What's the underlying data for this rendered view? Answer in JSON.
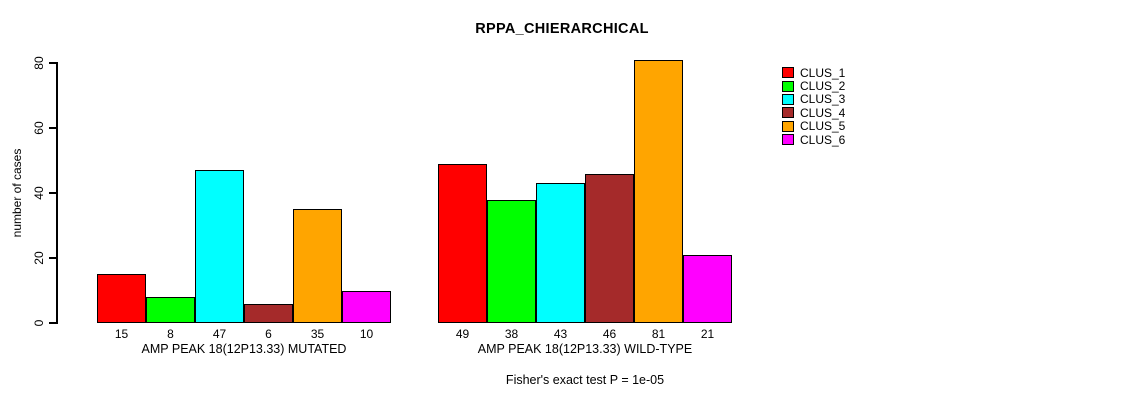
{
  "title": "RPPA_CHIERARCHICAL",
  "chart_data": {
    "type": "bar",
    "title": "RPPA_CHIERARCHICAL",
    "ylabel": "number of cases",
    "xlabel": "",
    "ylim": [
      0,
      80
    ],
    "yticks": [
      0,
      20,
      40,
      60,
      80
    ],
    "grid": false,
    "legend_position": "right",
    "categories": [
      "AMP PEAK 18(12P13.33) MUTATED",
      "AMP PEAK 18(12P13.33) WILD-TYPE"
    ],
    "series": [
      {
        "name": "CLUS_1",
        "color": "#FF0000",
        "values": [
          15,
          49
        ]
      },
      {
        "name": "CLUS_2",
        "color": "#00FF00",
        "values": [
          8,
          38
        ]
      },
      {
        "name": "CLUS_3",
        "color": "#00FFFF",
        "values": [
          47,
          43
        ]
      },
      {
        "name": "CLUS_4",
        "color": "#A52A2A",
        "values": [
          6,
          46
        ]
      },
      {
        "name": "CLUS_5",
        "color": "#FFA500",
        "values": [
          35,
          81
        ]
      },
      {
        "name": "CLUS_6",
        "color": "#FF00FF",
        "values": [
          10,
          21
        ]
      }
    ],
    "bar_value_labels": [
      [
        15,
        8,
        47,
        6,
        35,
        10
      ],
      [
        49,
        38,
        43,
        46,
        81,
        21
      ]
    ],
    "annotation": "Fisher's exact test P = 1e-05"
  }
}
